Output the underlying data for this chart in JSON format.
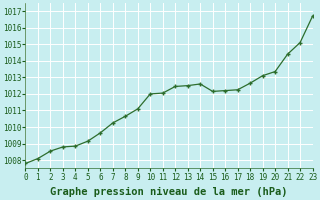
{
  "x": [
    0,
    1,
    2,
    3,
    4,
    5,
    6,
    7,
    8,
    9,
    10,
    11,
    12,
    13,
    14,
    15,
    16,
    17,
    18,
    19,
    20,
    21,
    22,
    23
  ],
  "y": [
    1007.8,
    1008.1,
    1008.55,
    1008.8,
    1008.85,
    1009.15,
    1009.65,
    1010.25,
    1010.65,
    1011.1,
    1012.0,
    1012.05,
    1012.45,
    1012.5,
    1012.6,
    1012.15,
    1012.2,
    1012.25,
    1012.65,
    1013.1,
    1013.35,
    1014.4,
    1015.1,
    1016.7
  ],
  "xlim": [
    0,
    23
  ],
  "ylim": [
    1007.5,
    1017.5
  ],
  "yticks": [
    1008,
    1009,
    1010,
    1011,
    1012,
    1013,
    1014,
    1015,
    1016,
    1017
  ],
  "xticks": [
    0,
    1,
    2,
    3,
    4,
    5,
    6,
    7,
    8,
    9,
    10,
    11,
    12,
    13,
    14,
    15,
    16,
    17,
    18,
    19,
    20,
    21,
    22,
    23
  ],
  "xlabel": "Graphe pression niveau de la mer (hPa)",
  "line_color": "#2d6e2d",
  "marker": "+",
  "bg_color": "#c8eef0",
  "grid_color": "#b0d8dc",
  "tick_label_fontsize": 5.5,
  "xlabel_fontsize": 7.5,
  "xlabel_color": "#1a5c1a"
}
